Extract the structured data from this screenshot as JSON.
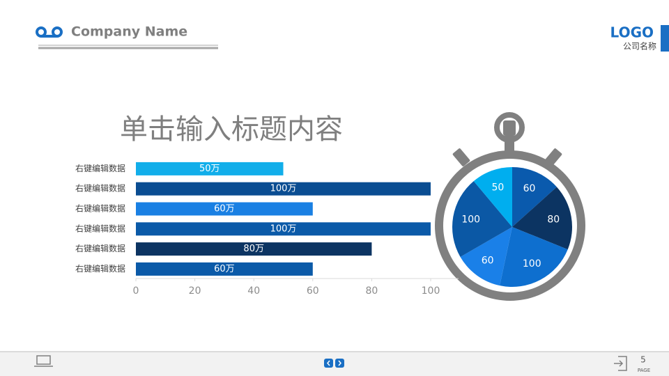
{
  "header": {
    "company": "Company Name",
    "logo": "LOGO",
    "logo_sub": "公司名称"
  },
  "footer": {
    "page": "5",
    "page_label": "PAGE"
  },
  "chart_data": [
    {
      "type": "bar",
      "orientation": "horizontal",
      "title": "单击输入标题内容",
      "categories": [
        "右键编辑数据",
        "右键编辑数据",
        "右键编辑数据",
        "右键编辑数据",
        "右键编辑数据",
        "右键编辑数据"
      ],
      "values": [
        50,
        100,
        60,
        100,
        80,
        60
      ],
      "value_labels": [
        "50万",
        "100万",
        "60万",
        "100万",
        "80万",
        "60万"
      ],
      "colors": [
        "#12aeea",
        "#0a4d92",
        "#1a80e3",
        "#0b5aa8",
        "#0c3462",
        "#0b5aa8"
      ],
      "xlim": [
        0,
        100
      ],
      "xticks": [
        0,
        20,
        40,
        60,
        80,
        100
      ]
    },
    {
      "type": "pie",
      "values": [
        60,
        80,
        100,
        60,
        100,
        50
      ],
      "colors": [
        "#0a5aad",
        "#0c3462",
        "#0e6fcf",
        "#1a80e8",
        "#0b58a5",
        "#00aeef"
      ]
    }
  ]
}
